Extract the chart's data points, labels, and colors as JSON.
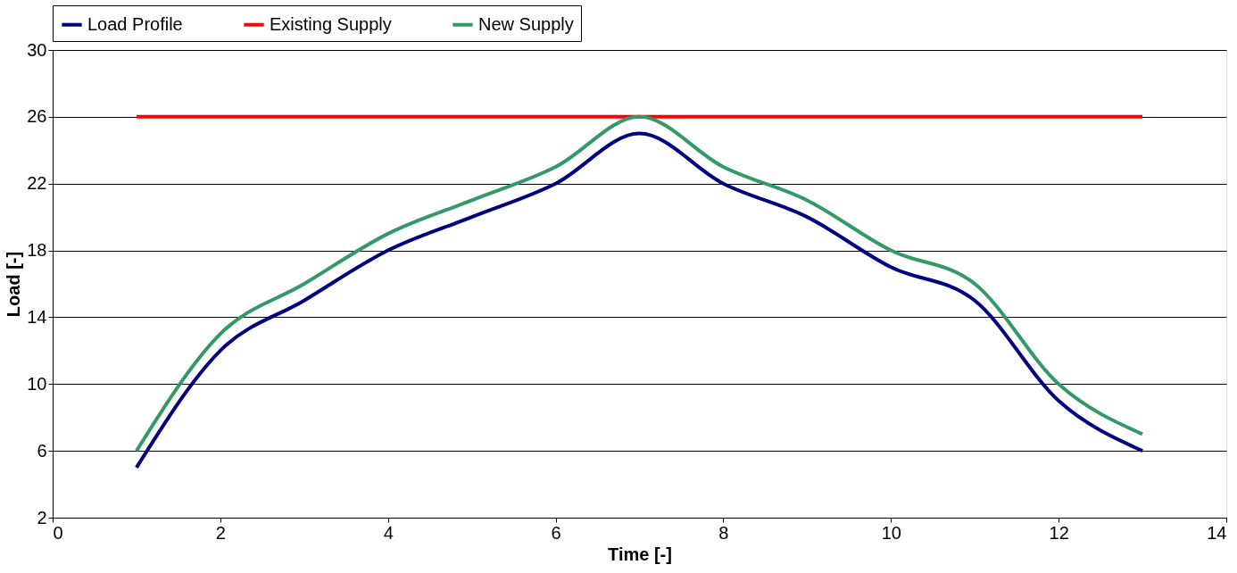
{
  "chart_data": {
    "type": "line",
    "xlabel": "Time [-]",
    "ylabel": "Load [-]",
    "x": [
      1,
      2,
      3,
      4,
      5,
      6,
      7,
      8,
      9,
      10,
      11,
      12,
      13
    ],
    "series": [
      {
        "name": "Load Profile",
        "color": "#000080",
        "values": [
          5,
          12,
          15,
          18,
          20,
          22,
          25,
          22,
          20,
          17,
          15,
          9,
          6
        ]
      },
      {
        "name": "Existing Supply",
        "color": "#ff0000",
        "values": [
          26,
          26,
          26,
          26,
          26,
          26,
          26,
          26,
          26,
          26,
          26,
          26,
          26
        ]
      },
      {
        "name": "New Supply",
        "color": "#339966",
        "values": [
          6,
          13,
          16,
          19,
          21,
          23,
          26,
          23,
          21,
          18,
          16,
          10,
          7
        ]
      }
    ],
    "xlim": [
      0,
      14
    ],
    "xticks": [
      0,
      2,
      4,
      6,
      8,
      10,
      12,
      14
    ],
    "ylim": [
      2,
      30
    ],
    "yticks": [
      2,
      6,
      10,
      14,
      18,
      22,
      26,
      30
    ],
    "grid": "y",
    "legend": "top",
    "marker": "none"
  }
}
